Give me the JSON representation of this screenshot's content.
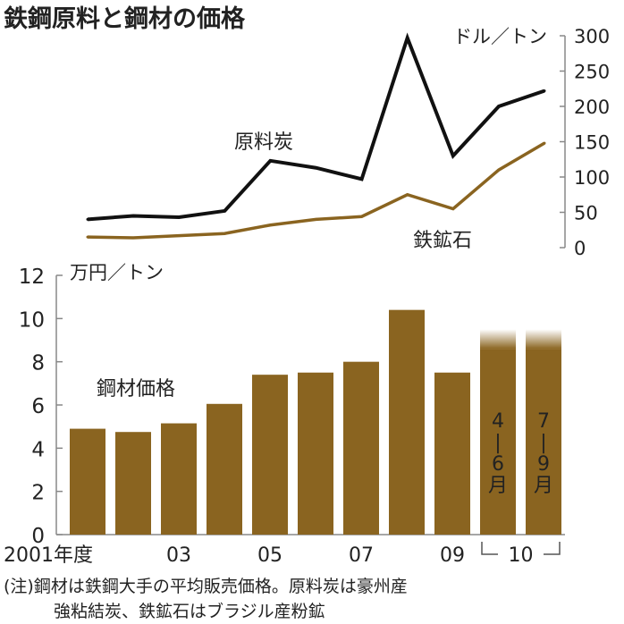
{
  "title": "鉄鋼原料と鋼材の価格",
  "colors": {
    "coal": "#111111",
    "ore": "#8a6420",
    "bar": "#8a6420",
    "axis": "#888888"
  },
  "chart_data": [
    {
      "type": "line",
      "unit_label": "ドル／トン",
      "x": [
        "2001",
        "02",
        "03",
        "04",
        "05",
        "06",
        "07",
        "08",
        "09",
        "10 4-6月",
        "10 7-9月"
      ],
      "ylim": [
        0,
        300
      ],
      "yticks": [
        "0",
        "50",
        "100",
        "150",
        "200",
        "250",
        "300"
      ],
      "grid": false,
      "series": [
        {
          "name": "原料炭",
          "values": [
            40,
            45,
            43,
            52,
            123,
            113,
            97,
            297,
            130,
            200,
            222
          ]
        },
        {
          "name": "鉄鉱石",
          "values": [
            15,
            14,
            17,
            20,
            32,
            40,
            44,
            75,
            55,
            110,
            148
          ]
        }
      ]
    },
    {
      "type": "bar",
      "unit_label": "万円／トン",
      "series_label": "鋼材価格",
      "categories": [
        "2001",
        "02",
        "03",
        "04",
        "05",
        "06",
        "07",
        "08",
        "09",
        "10 4-6月",
        "10 7-9月"
      ],
      "values": [
        4.9,
        4.75,
        5.15,
        6.05,
        7.4,
        7.5,
        8.0,
        10.4,
        7.5,
        9.5,
        9.5
      ],
      "ylim": [
        0,
        12
      ],
      "yticks": [
        "0",
        "2",
        "4",
        "6",
        "8",
        "10",
        "12"
      ],
      "xtick_labels": [
        {
          "label": "2001年度",
          "index": 0
        },
        {
          "label": "03",
          "index": 2
        },
        {
          "label": "05",
          "index": 4
        },
        {
          "label": "07",
          "index": 6
        },
        {
          "label": "09",
          "index": 8
        },
        {
          "label": "10",
          "index": 9.5
        }
      ],
      "bar_labels": [
        {
          "index": 9,
          "chars": [
            "4",
            "|",
            "6",
            "月"
          ]
        },
        {
          "index": 10,
          "chars": [
            "7",
            "|",
            "9",
            "月"
          ]
        }
      ]
    }
  ],
  "footnote": {
    "line1": "(注)鋼材は鉄鋼大手の平均販売価格。原料炭は豪州産",
    "line2": "強粘結炭、鉄鉱石はブラジル産粉鉱"
  }
}
